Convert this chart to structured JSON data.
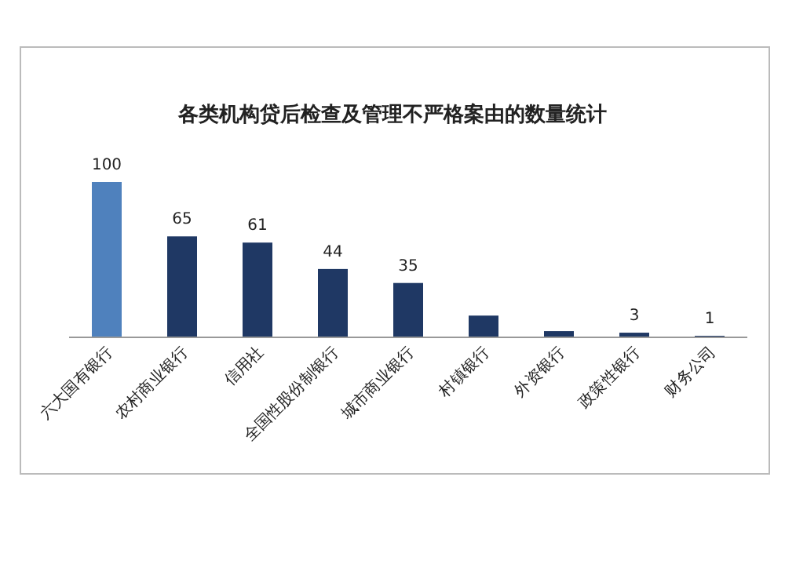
{
  "chart_data": {
    "type": "bar",
    "title": "各类机构贷后检查及管理不严格案由的数量统计",
    "categories": [
      "六大国有银行",
      "农村商业银行",
      "信用社",
      "全国性股份制银行",
      "城市商业银行",
      "村镇银行",
      "外资银行",
      "政策性银行",
      "财务公司"
    ],
    "values": [
      100,
      65,
      61,
      44,
      35,
      14,
      4,
      3,
      1
    ],
    "colors": [
      "#4f81bd",
      "#1f3864",
      "#1f3864",
      "#1f3864",
      "#1f3864",
      "#1f3864",
      "#1f3864",
      "#1f3864",
      "#1f3864"
    ],
    "value_labels": [
      "100",
      "65",
      "61",
      "44",
      "35",
      null,
      null,
      "3",
      "1"
    ]
  }
}
